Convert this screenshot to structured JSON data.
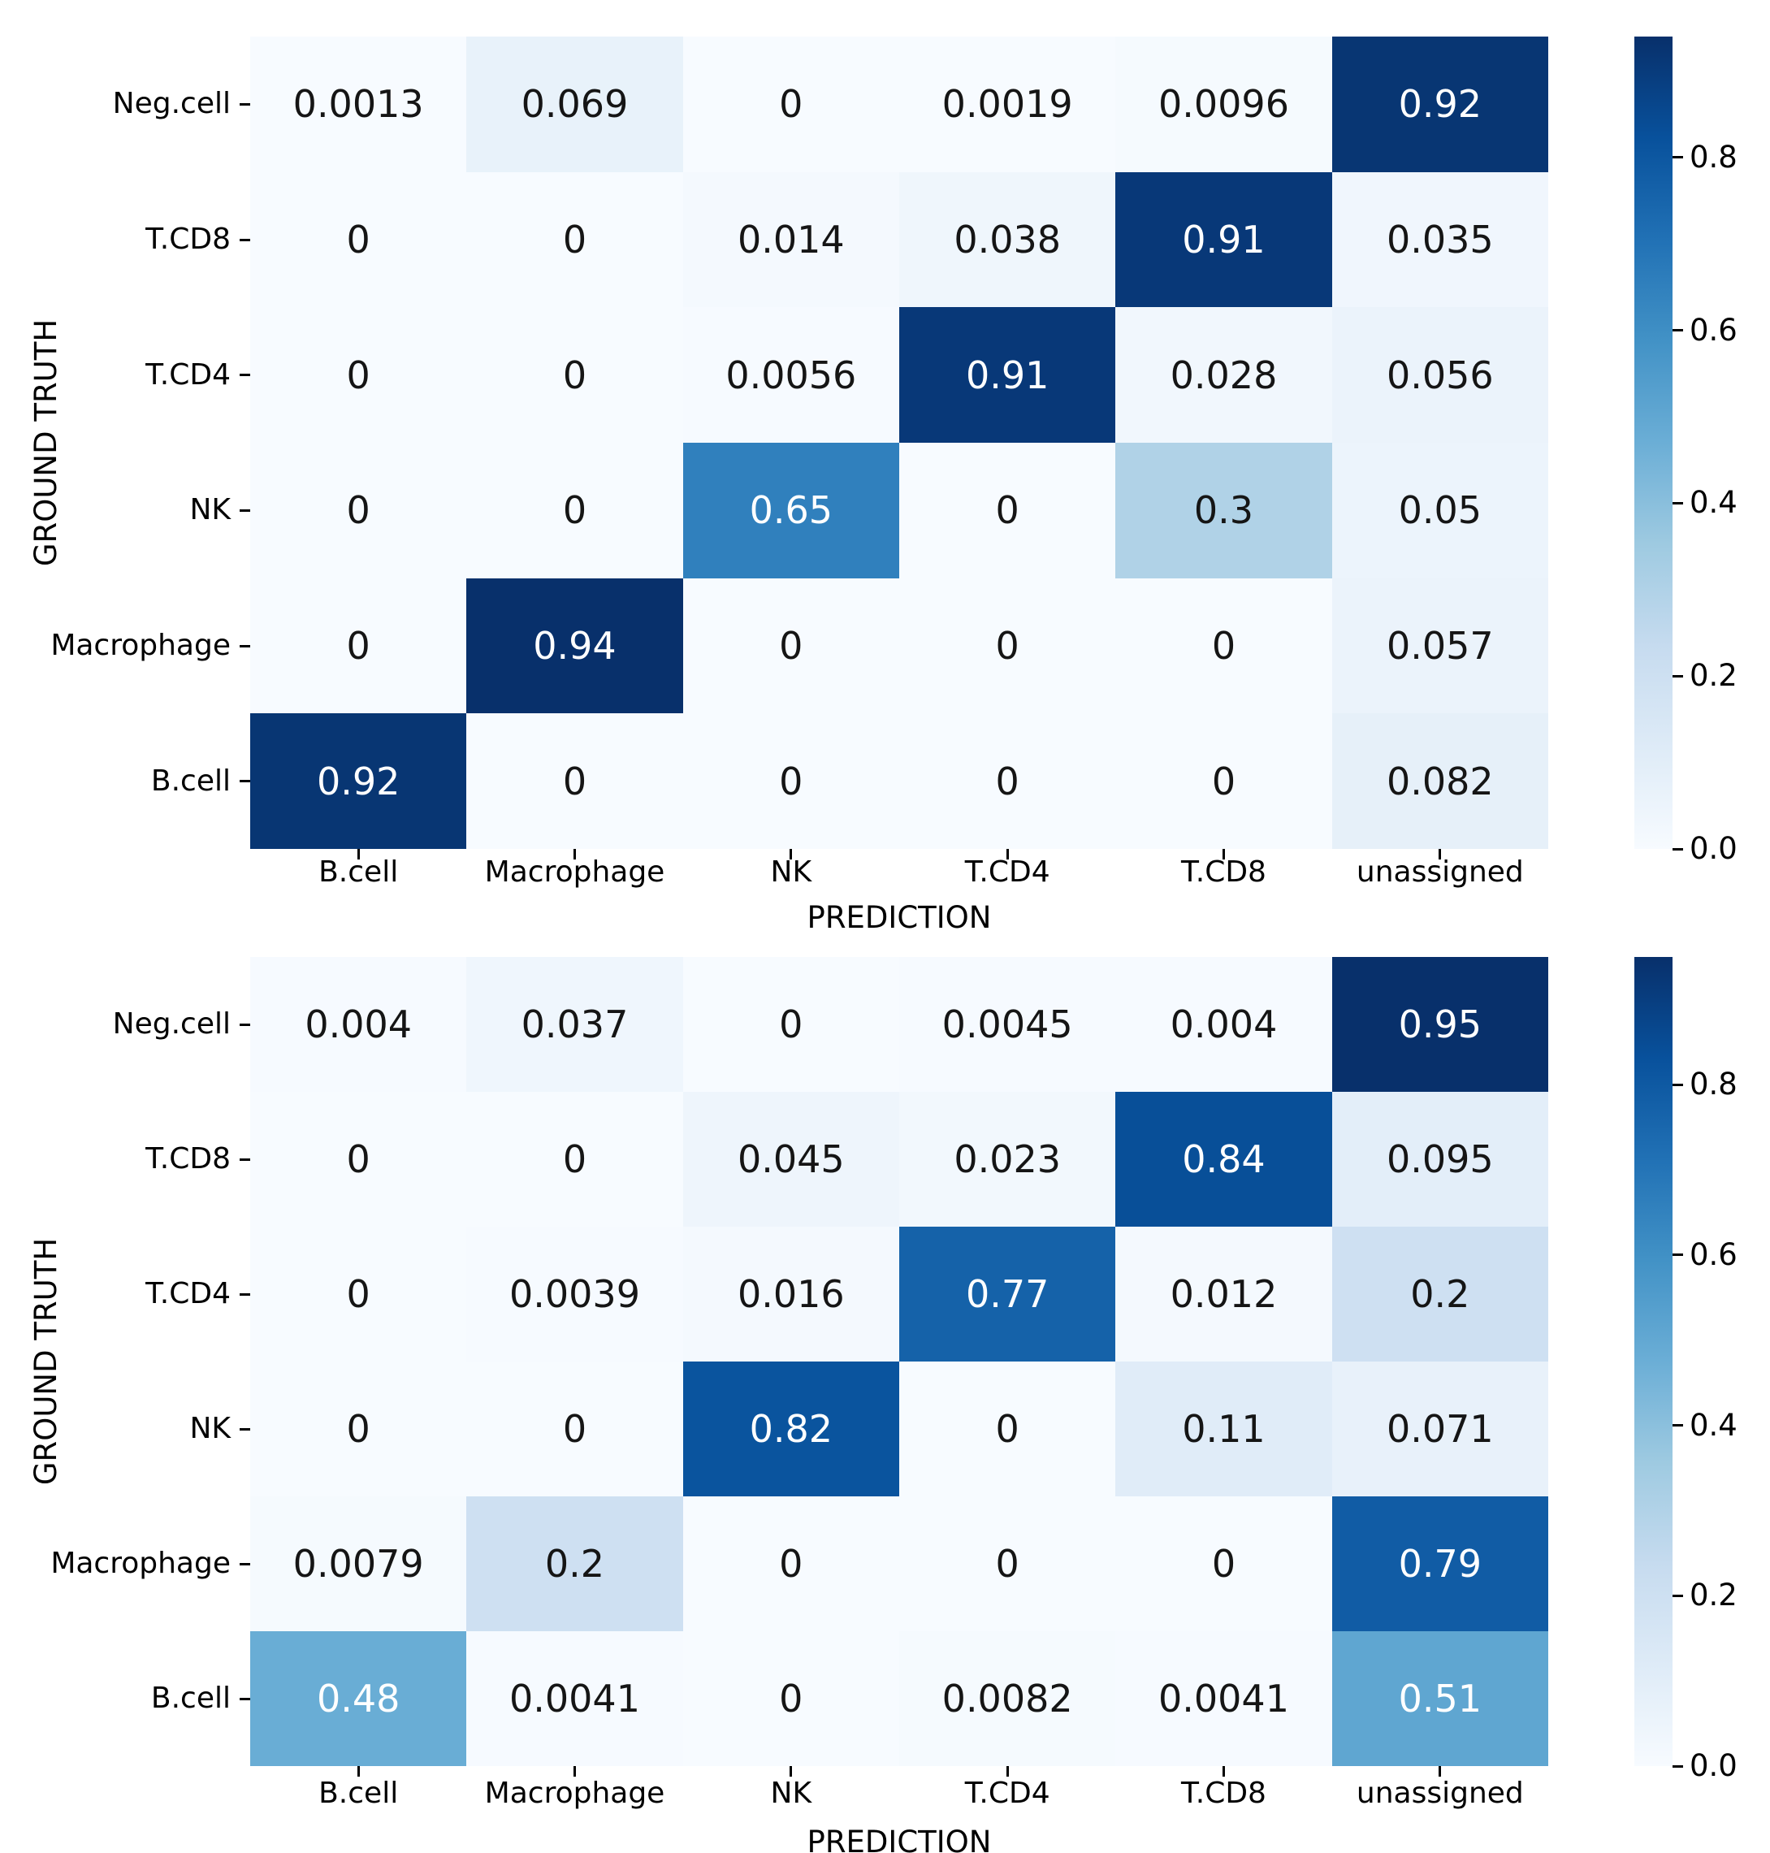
{
  "chart_data": [
    {
      "type": "heatmap",
      "title": "",
      "xlabel": "PREDICTION",
      "ylabel": "GROUND TRUTH",
      "colormap": "Blues",
      "x_categories": [
        "B.cell",
        "Macrophage",
        "NK",
        "T.CD4",
        "T.CD8",
        "unassigned"
      ],
      "y_categories": [
        "Neg.cell",
        "T.CD8",
        "T.CD4",
        "NK",
        "Macrophage",
        "B.cell"
      ],
      "values": [
        [
          "0.0013",
          "0.069",
          "0",
          "0.0019",
          "0.0096",
          "0.92"
        ],
        [
          "0",
          "0",
          "0.014",
          "0.038",
          "0.91",
          "0.035"
        ],
        [
          "0",
          "0",
          "0.0056",
          "0.91",
          "0.028",
          "0.056"
        ],
        [
          "0",
          "0",
          "0.65",
          "0",
          "0.3",
          "0.05"
        ],
        [
          "0",
          "0.94",
          "0",
          "0",
          "0",
          "0.057"
        ],
        [
          "0.92",
          "0",
          "0",
          "0",
          "0",
          "0.082"
        ]
      ],
      "vmin": 0.0,
      "vmax": 0.94,
      "colorbar_ticks": [
        "0.0",
        "0.2",
        "0.4",
        "0.6",
        "0.8"
      ],
      "legend_position": "right",
      "grid": false
    },
    {
      "type": "heatmap",
      "title": "",
      "xlabel": "PREDICTION",
      "ylabel": "GROUND TRUTH",
      "colormap": "Blues",
      "x_categories": [
        "B.cell",
        "Macrophage",
        "NK",
        "T.CD4",
        "T.CD8",
        "unassigned"
      ],
      "y_categories": [
        "Neg.cell",
        "T.CD8",
        "T.CD4",
        "NK",
        "Macrophage",
        "B.cell"
      ],
      "values": [
        [
          "0.004",
          "0.037",
          "0",
          "0.0045",
          "0.004",
          "0.95"
        ],
        [
          "0",
          "0",
          "0.045",
          "0.023",
          "0.84",
          "0.095"
        ],
        [
          "0",
          "0.0039",
          "0.016",
          "0.77",
          "0.012",
          "0.2"
        ],
        [
          "0",
          "0",
          "0.82",
          "0",
          "0.11",
          "0.071"
        ],
        [
          "0.0079",
          "0.2",
          "0",
          "0",
          "0",
          "0.79"
        ],
        [
          "0.48",
          "0.0041",
          "0",
          "0.0082",
          "0.0041",
          "0.51"
        ]
      ],
      "vmin": 0.0,
      "vmax": 0.95,
      "colorbar_ticks": [
        "0.0",
        "0.2",
        "0.4",
        "0.6",
        "0.8"
      ],
      "legend_position": "right",
      "grid": false
    }
  ],
  "colors": {
    "colormap_low": "#f7fbff",
    "colormap_high": "#08306b",
    "annotation_dark": "#151515",
    "annotation_light": "#ffffff",
    "background": "#ffffff",
    "tick": "#000000"
  }
}
